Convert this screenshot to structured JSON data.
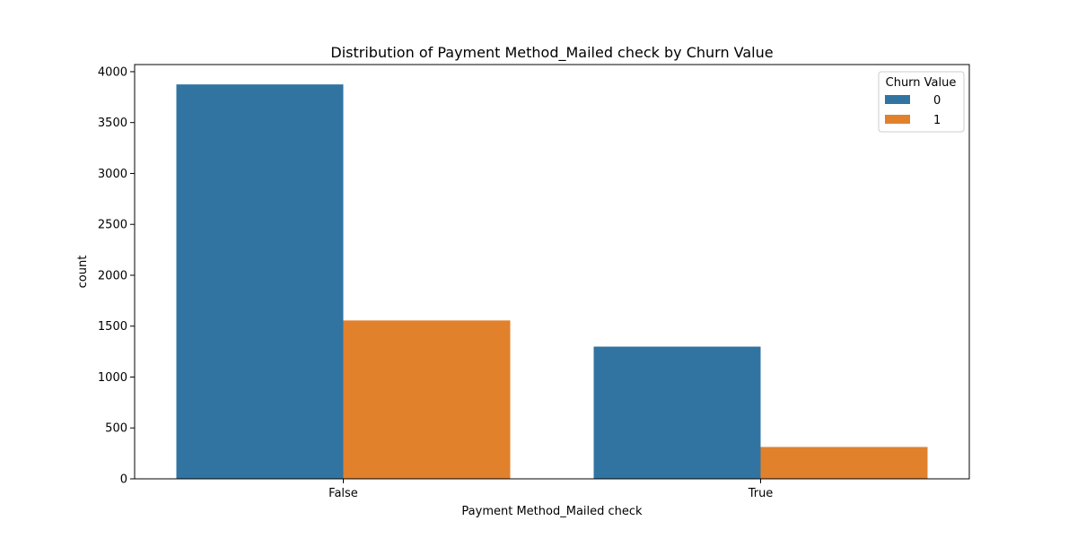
{
  "chart_data": {
    "type": "bar",
    "title": "Distribution of Payment Method_Mailed check by Churn Value",
    "xlabel": "Payment Method_Mailed check",
    "ylabel": "count",
    "categories": [
      "False",
      "True"
    ],
    "series": [
      {
        "name": "0",
        "values": [
          3875,
          1299
        ],
        "color": "#3274a1"
      },
      {
        "name": "1",
        "values": [
          1556,
          313
        ],
        "color": "#e1812c"
      }
    ],
    "ylim": [
      0,
      4070
    ],
    "yticks": [
      0,
      500,
      1000,
      1500,
      2000,
      2500,
      3000,
      3500,
      4000
    ],
    "legend": {
      "title": "Churn Value",
      "position": "top-right"
    },
    "grid": false
  }
}
